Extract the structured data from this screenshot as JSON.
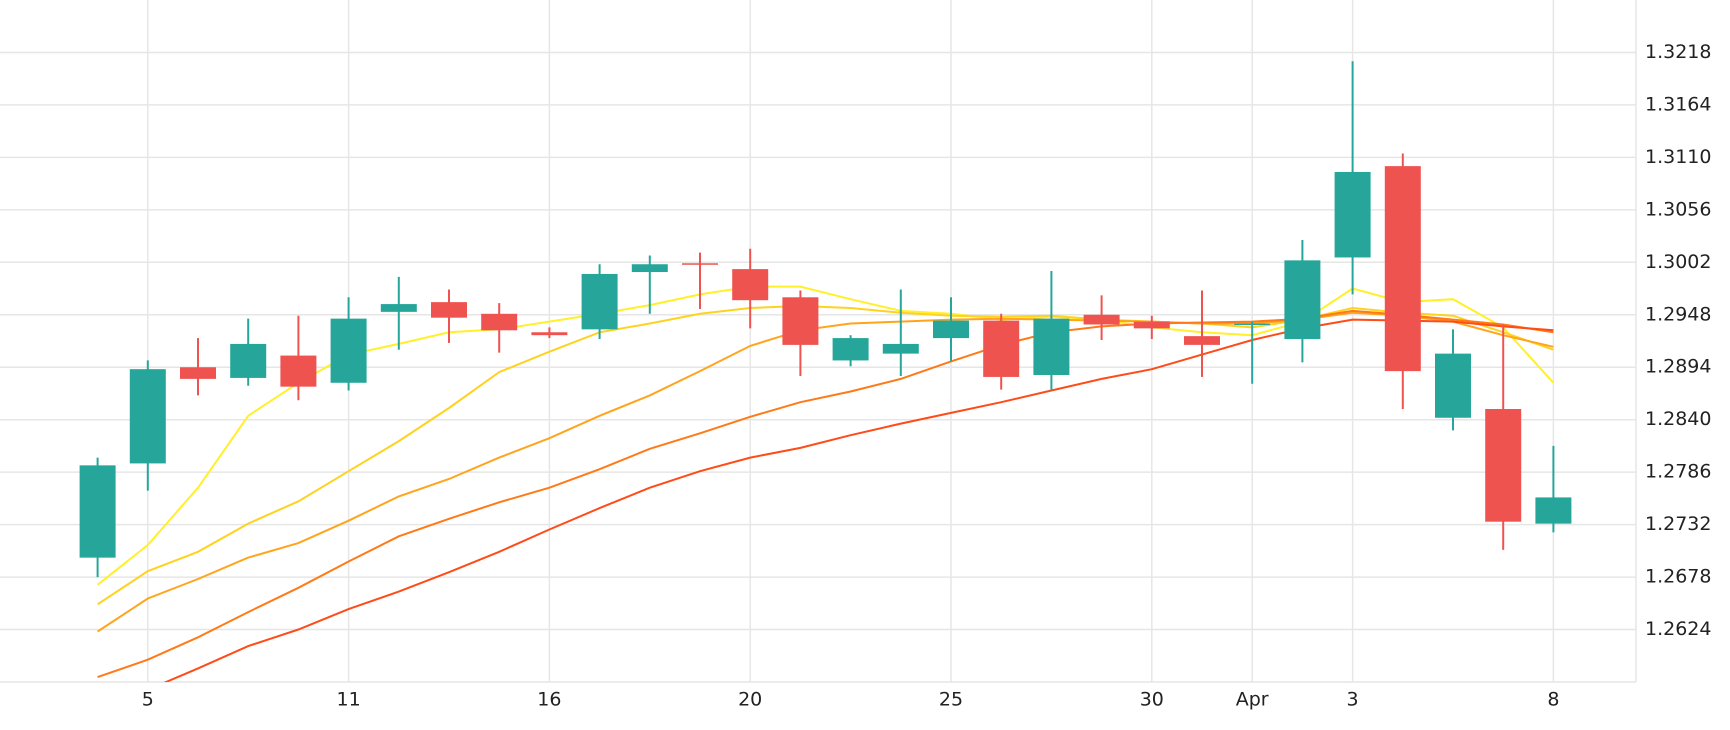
{
  "chart_data": {
    "type": "candlestick",
    "categories": [
      null,
      "5",
      null,
      null,
      null,
      "11",
      null,
      null,
      null,
      "16",
      null,
      null,
      null,
      "20",
      null,
      null,
      null,
      "25",
      null,
      null,
      null,
      "30",
      null,
      "Apr",
      null,
      "3",
      null,
      null,
      null,
      "8"
    ],
    "open": [
      1.2698,
      1.2795,
      1.2894,
      1.2883,
      1.2906,
      1.2878,
      1.2951,
      1.2961,
      1.2949,
      1.293,
      1.2933,
      1.2992,
      1.3001,
      1.2995,
      1.2966,
      1.2901,
      1.2908,
      1.2924,
      1.2942,
      1.2886,
      1.2948,
      1.2941,
      1.2926,
      1.2938,
      1.2923,
      1.3007,
      1.3101,
      1.2842,
      1.2851,
      1.2733
    ],
    "high": [
      1.2801,
      1.2901,
      1.2924,
      1.2944,
      1.2947,
      1.2966,
      1.2987,
      1.2974,
      1.296,
      1.2935,
      1.3,
      1.3009,
      1.3012,
      1.3016,
      1.2973,
      1.2927,
      1.2974,
      1.2966,
      1.2949,
      1.2993,
      1.2968,
      1.2947,
      1.2973,
      1.2941,
      1.3025,
      1.3209,
      1.3114,
      1.2933,
      1.2938,
      1.2813
    ],
    "low": [
      1.2678,
      1.2767,
      1.2865,
      1.2875,
      1.286,
      1.287,
      1.2912,
      1.2919,
      1.2909,
      1.2924,
      1.2923,
      1.2949,
      1.2954,
      1.2934,
      1.2885,
      1.2895,
      1.2885,
      1.29,
      1.2871,
      1.287,
      1.2922,
      1.2923,
      1.2884,
      1.2877,
      1.2899,
      1.2969,
      1.2851,
      1.2829,
      1.2706,
      1.2724
    ],
    "close": [
      1.2793,
      1.2892,
      1.2882,
      1.2918,
      1.2874,
      1.2944,
      1.2959,
      1.2945,
      1.2932,
      1.2927,
      1.299,
      1.3,
      1.3,
      1.2963,
      1.2917,
      1.2924,
      1.2918,
      1.2942,
      1.2884,
      1.2944,
      1.2938,
      1.2934,
      1.2917,
      1.2939,
      1.3004,
      1.3095,
      1.289,
      1.2908,
      1.2735,
      1.276
    ],
    "up_color": "#26a69a",
    "down_color": "#ef5350",
    "series": [
      {
        "color": "#fff02a",
        "values": [
          1.267,
          1.2711,
          1.277,
          1.2844,
          1.2878,
          1.2907,
          1.2918,
          1.293,
          1.2933,
          1.2941,
          1.2949,
          1.2958,
          1.2969,
          1.2977,
          1.2977,
          1.2964,
          1.2952,
          1.2949,
          1.2943,
          1.2946,
          1.2943,
          1.2935,
          1.293,
          1.2927,
          1.2941,
          1.2975,
          1.2961,
          1.2964,
          1.2935,
          1.2878
        ]
      },
      {
        "color": "#ffd21f",
        "values": [
          1.265,
          1.2684,
          1.2704,
          1.2733,
          1.2756,
          1.2787,
          1.2818,
          1.2852,
          1.2889,
          1.291,
          1.293,
          1.2939,
          1.2949,
          1.2955,
          1.2957,
          1.2955,
          1.295,
          1.2947,
          1.2946,
          1.2947,
          1.2943,
          1.2941,
          1.2939,
          1.2935,
          1.2943,
          1.2955,
          1.295,
          1.2947,
          1.293,
          1.2912
        ]
      },
      {
        "color": "#ffa41c",
        "values": [
          1.2622,
          1.2656,
          1.2676,
          1.2698,
          1.2713,
          1.2736,
          1.2761,
          1.2779,
          1.2801,
          1.2821,
          1.2844,
          1.2865,
          1.289,
          1.2916,
          1.2932,
          1.2939,
          1.2941,
          1.2943,
          1.2944,
          1.2943,
          1.2942,
          1.2941,
          1.2939,
          1.2939,
          1.2943,
          1.295,
          1.2947,
          1.2941,
          1.2927,
          1.2915
        ]
      },
      {
        "color": "#ff7a17",
        "values": [
          1.2575,
          1.2593,
          1.2616,
          1.2642,
          1.2667,
          1.2694,
          1.272,
          1.2738,
          1.2755,
          1.277,
          1.2789,
          1.281,
          1.2826,
          1.2843,
          1.2858,
          1.2869,
          1.2882,
          1.29,
          1.2917,
          1.293,
          1.2936,
          1.2939,
          1.294,
          1.2941,
          1.2944,
          1.2952,
          1.2948,
          1.2943,
          1.2938,
          1.293
        ]
      },
      {
        "color": "#ff4b17",
        "values": [
          null,
          1.2562,
          1.2584,
          1.2607,
          1.2624,
          1.2645,
          1.2663,
          1.2683,
          1.2704,
          1.2727,
          1.2749,
          1.277,
          1.2787,
          1.2801,
          1.2811,
          1.2824,
          1.2836,
          1.2847,
          1.2858,
          1.287,
          1.2882,
          1.2892,
          1.2907,
          1.2922,
          1.2934,
          1.2943,
          1.2942,
          1.2941,
          1.2936,
          1.2932
        ]
      }
    ],
    "ylim": [
      1.257,
      1.3272
    ],
    "yticks": [
      1.2624,
      1.2678,
      1.2732,
      1.2786,
      {
        "value": 1.284,
        "label": "1.2840"
      },
      1.2894,
      1.2948,
      1.3002,
      1.3056,
      {
        "value": 1.311,
        "label": "1.3110"
      },
      1.3164,
      1.3218
    ],
    "grid": true
  }
}
